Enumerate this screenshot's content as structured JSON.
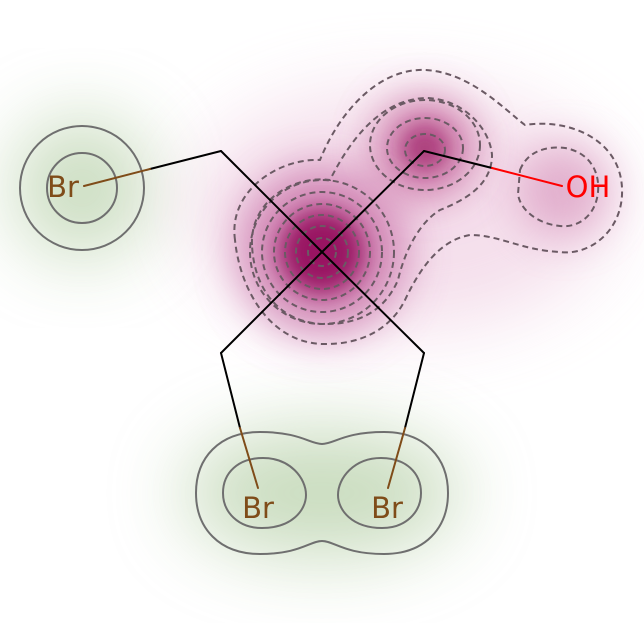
{
  "molecule": {
    "atoms": [
      {
        "id": "br1",
        "label": "Br",
        "color": "#7f4c19"
      },
      {
        "id": "br2",
        "label": "Br",
        "color": "#7f4c19"
      },
      {
        "id": "br3",
        "label": "Br",
        "color": "#7f4c19"
      },
      {
        "id": "oh",
        "label": "OH",
        "color": "#ff0000"
      }
    ],
    "colors": {
      "bond": "#000000",
      "negative_contour": "#6b5a64",
      "positive_contour": "#6f6f6f",
      "negative_fill": "#8e0152",
      "positive_fill": "#4d7a35",
      "background": "#ffffff"
    }
  }
}
